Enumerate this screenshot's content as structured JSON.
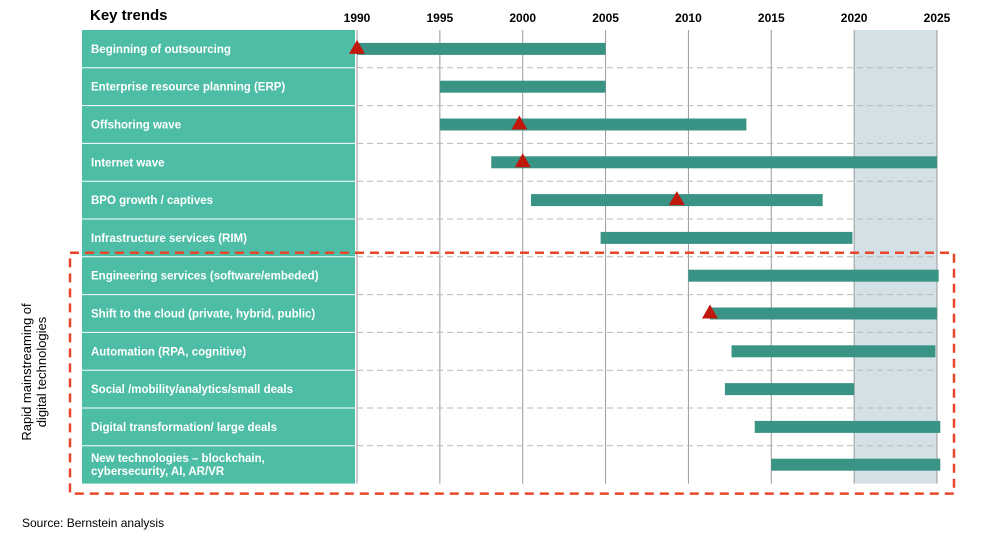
{
  "chart_data": {
    "type": "gantt",
    "title": "Key trends",
    "x_ticks": [
      "1990",
      "1995",
      "2000",
      "2005",
      "2010",
      "2015",
      "2020",
      "2025"
    ],
    "xlim": [
      1990,
      2025
    ],
    "highlight_range": [
      2020,
      2025
    ],
    "highlight_color": "#d3e0e6",
    "bar_color": "#3a9486",
    "label_bg_color": "#4dbda6",
    "marker_color": "#c0180c",
    "box_color": "#e8452a",
    "rows": [
      {
        "label": "Beginning of outsourcing",
        "start": 1990.0,
        "end": 2005.0,
        "marker": 1990.0
      },
      {
        "label": "Enterprise resource planning (ERP)",
        "start": 1995.0,
        "end": 2005.0,
        "marker": null
      },
      {
        "label": "Offshoring  wave",
        "start": 1995.0,
        "end": 2013.5,
        "marker": 1999.8
      },
      {
        "label": "Internet wave",
        "start": 1998.1,
        "end": 2025.0,
        "marker": 2000.0
      },
      {
        "label": "BPO growth / captives",
        "start": 2000.5,
        "end": 2018.1,
        "marker": 2009.3
      },
      {
        "label": "Infrastructure  services (RIM)",
        "start": 2004.7,
        "end": 2019.9,
        "marker": null
      },
      {
        "label": "Engineering services (software/embeded)",
        "start": 2010.0,
        "end": 2025.1,
        "marker": null
      },
      {
        "label": "Shift to the cloud (private,  hybrid,  public)",
        "start": 2011.3,
        "end": 2025.0,
        "marker": 2011.3
      },
      {
        "label": "Automation (RPA,  cognitive)",
        "start": 2012.6,
        "end": 2024.9,
        "marker": null
      },
      {
        "label": "Social /mobility/analytics/small deals",
        "start": 2012.2,
        "end": 2020.0,
        "marker": null
      },
      {
        "label": "Digital transformation/  large deals",
        "start": 2014.0,
        "end": 2025.2,
        "marker": null
      },
      {
        "label": "New technologies – blockchain,\ncybersecurity,  AI,  AR/VR",
        "start": 2015.0,
        "end": 2025.2,
        "marker": null
      }
    ],
    "group_label": "Rapid mainstreaming of\ndigital technologies",
    "group_rows": [
      6,
      11
    ]
  },
  "source": "Source: Bernstein analysis"
}
